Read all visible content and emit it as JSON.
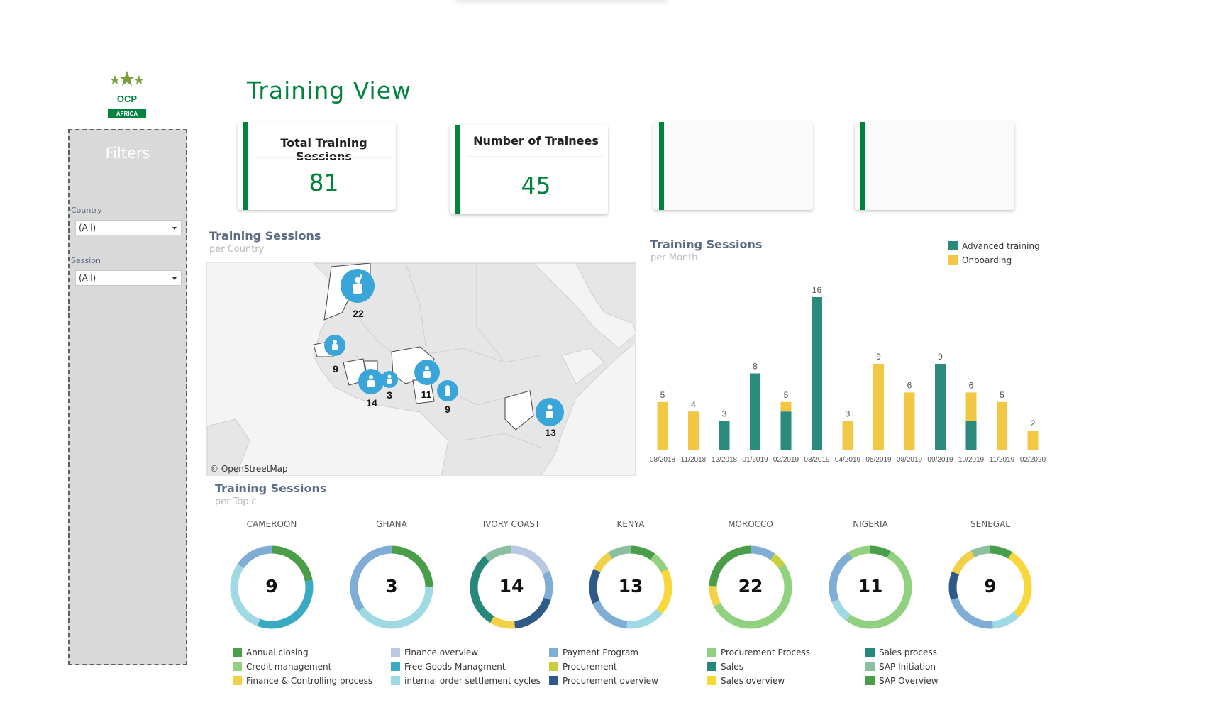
{
  "page": {
    "title": "Training View"
  },
  "logo": {
    "text": "OCP",
    "badge": "AFRICA"
  },
  "filters": {
    "title": "Filters",
    "country": {
      "label": "Country",
      "value": "(All)"
    },
    "session": {
      "label": "Session",
      "value": "(All)"
    }
  },
  "kpis": [
    {
      "label": "Total Training Sessions",
      "value": "81"
    },
    {
      "label": "Number of Trainees",
      "value": "45"
    },
    {
      "label": "",
      "value": ""
    },
    {
      "label": "",
      "value": ""
    }
  ],
  "map_section": {
    "title": "Training Sessions",
    "subtitle": "per Country",
    "credit": "© OpenStreetMap",
    "markers": [
      {
        "country": "Morocco",
        "value": "22"
      },
      {
        "country": "Senegal",
        "value": "9"
      },
      {
        "country": "Ivory Coast",
        "value": "14"
      },
      {
        "country": "Ghana",
        "value": "3"
      },
      {
        "country": "Nigeria",
        "value": "11"
      },
      {
        "country": "Cameroon",
        "value": "9"
      },
      {
        "country": "Kenya",
        "value": "13"
      }
    ]
  },
  "month_section": {
    "title": "Training Sessions",
    "subtitle": "per Month"
  },
  "topic_section": {
    "title": "Training Sessions",
    "subtitle": "per Topic"
  },
  "colors": {
    "brand_green": "#00843d",
    "advanced": "#2a8a7c",
    "onboarding": "#f2c744"
  },
  "chart_data": [
    {
      "type": "bar",
      "stacked": true,
      "categories": [
        "08/2018",
        "11/2018",
        "12/2018",
        "01/2019",
        "02/2019",
        "03/2019",
        "04/2019",
        "05/2019",
        "08/2019",
        "09/2019",
        "10/2019",
        "11/2019",
        "02/2020"
      ],
      "series": [
        {
          "name": "Advanced training",
          "color": "#2a8a7c",
          "values": [
            0,
            0,
            3,
            8,
            4,
            16,
            0,
            0,
            0,
            9,
            3,
            0,
            0
          ]
        },
        {
          "name": "Onboarding",
          "color": "#f2c744",
          "values": [
            5,
            4,
            0,
            0,
            1,
            0,
            3,
            9,
            6,
            0,
            3,
            5,
            2
          ]
        }
      ],
      "totals": [
        5,
        4,
        3,
        8,
        5,
        16,
        3,
        9,
        6,
        9,
        6,
        5,
        2
      ],
      "legend_position": "top-right",
      "ylim": [
        0,
        16
      ]
    },
    {
      "type": "pie",
      "variant": "donut",
      "legend": [
        {
          "name": "Annual closing",
          "color": "#4a9e4a"
        },
        {
          "name": "Credit management",
          "color": "#93d17e"
        },
        {
          "name": "Finance & Controlling process",
          "color": "#f2d147"
        },
        {
          "name": "Finance overview",
          "color": "#b9c8e3"
        },
        {
          "name": "Free Goods Managment",
          "color": "#3aaac2"
        },
        {
          "name": "internal order settlement cycles",
          "color": "#9fdae4"
        },
        {
          "name": "Payment Program",
          "color": "#7fadd6"
        },
        {
          "name": "Procurement",
          "color": "#c8cf3a"
        },
        {
          "name": "Procurement overview",
          "color": "#2e5a87"
        },
        {
          "name": "Procurement Process",
          "color": "#8fd17f"
        },
        {
          "name": "Sales",
          "color": "#27877a"
        },
        {
          "name": "Sales overview",
          "color": "#f8d73a"
        },
        {
          "name": "Sales process",
          "color": "#27877a"
        },
        {
          "name": "SAP Initiation",
          "color": "#8cbf9f"
        },
        {
          "name": "SAP Overview",
          "color": "#4a9e4a"
        }
      ],
      "donuts": [
        {
          "country": "CAMEROON",
          "total": 9,
          "segments": [
            {
              "topic": "Annual closing",
              "color": "#4a9e4a",
              "value": 2
            },
            {
              "topic": "Free Goods Managment",
              "color": "#3aaac2",
              "value": 3
            },
            {
              "topic": "internal order settlement cycles",
              "color": "#9fdae4",
              "value": 2.6
            },
            {
              "topic": "Payment Program",
              "color": "#7fadd6",
              "value": 1.4
            }
          ]
        },
        {
          "country": "GHANA",
          "total": 3,
          "segments": [
            {
              "topic": "Annual closing",
              "color": "#4a9e4a",
              "value": 0.75
            },
            {
              "topic": "internal order settlement cycles",
              "color": "#9fdae4",
              "value": 1.2
            },
            {
              "topic": "Payment Program",
              "color": "#7fadd6",
              "value": 1.05
            }
          ]
        },
        {
          "country": "IVORY COAST",
          "total": 14,
          "segments": [
            {
              "topic": "Finance overview",
              "color": "#b9c8e3",
              "value": 2.6
            },
            {
              "topic": "Payment Program",
              "color": "#7fadd6",
              "value": 1.6
            },
            {
              "topic": "Procurement overview",
              "color": "#2e5a87",
              "value": 2.6
            },
            {
              "topic": "Finance & Controlling process",
              "color": "#f2d147",
              "value": 1.4
            },
            {
              "topic": "Sales",
              "color": "#27877a",
              "value": 4.2
            },
            {
              "topic": "SAP Initiation",
              "color": "#8cbf9f",
              "value": 1.6
            }
          ]
        },
        {
          "country": "KENYA",
          "total": 13,
          "segments": [
            {
              "topic": "Annual closing",
              "color": "#4a9e4a",
              "value": 1.3
            },
            {
              "topic": "Credit management",
              "color": "#93d17e",
              "value": 1
            },
            {
              "topic": "Sales overview",
              "color": "#f8d73a",
              "value": 2.4
            },
            {
              "topic": "internal order settlement cycles",
              "color": "#9fdae4",
              "value": 2
            },
            {
              "topic": "Payment Program",
              "color": "#7fadd6",
              "value": 2.2
            },
            {
              "topic": "Procurement overview",
              "color": "#2e5a87",
              "value": 1.8
            },
            {
              "topic": "Finance & Controlling process",
              "color": "#f2d147",
              "value": 1.1
            },
            {
              "topic": "SAP Initiation",
              "color": "#8cbf9f",
              "value": 1.2
            }
          ]
        },
        {
          "country": "MOROCCO",
          "total": 22,
          "segments": [
            {
              "topic": "Payment Program",
              "color": "#7fadd6",
              "value": 2.2
            },
            {
              "topic": "Procurement",
              "color": "#c8cf3a",
              "value": 1.2
            },
            {
              "topic": "Procurement Process",
              "color": "#8fd17f",
              "value": 11.4
            },
            {
              "topic": "Finance & Controlling process",
              "color": "#f2d147",
              "value": 1.8
            },
            {
              "topic": "Annual closing",
              "color": "#4a9e4a",
              "value": 5.4
            }
          ]
        },
        {
          "country": "NIGERIA",
          "total": 11,
          "segments": [
            {
              "topic": "Annual closing",
              "color": "#4a9e4a",
              "value": 0.9
            },
            {
              "topic": "Procurement Process",
              "color": "#8fd17f",
              "value": 5.7
            },
            {
              "topic": "internal order settlement cycles",
              "color": "#9fdae4",
              "value": 1
            },
            {
              "topic": "Payment Program",
              "color": "#7fadd6",
              "value": 2.4
            },
            {
              "topic": "Credit management",
              "color": "#93d17e",
              "value": 1
            }
          ]
        },
        {
          "country": "SENEGAL",
          "total": 9,
          "segments": [
            {
              "topic": "Annual closing",
              "color": "#4a9e4a",
              "value": 0.8
            },
            {
              "topic": "Sales overview",
              "color": "#f8d73a",
              "value": 2.6
            },
            {
              "topic": "internal order settlement cycles",
              "color": "#9fdae4",
              "value": 1
            },
            {
              "topic": "Payment Program",
              "color": "#7fadd6",
              "value": 1.9
            },
            {
              "topic": "Procurement overview",
              "color": "#2e5a87",
              "value": 1
            },
            {
              "topic": "Finance & Controlling process",
              "color": "#f2d147",
              "value": 1
            },
            {
              "topic": "SAP Initiation",
              "color": "#8cbf9f",
              "value": 0.7
            }
          ]
        }
      ]
    }
  ]
}
